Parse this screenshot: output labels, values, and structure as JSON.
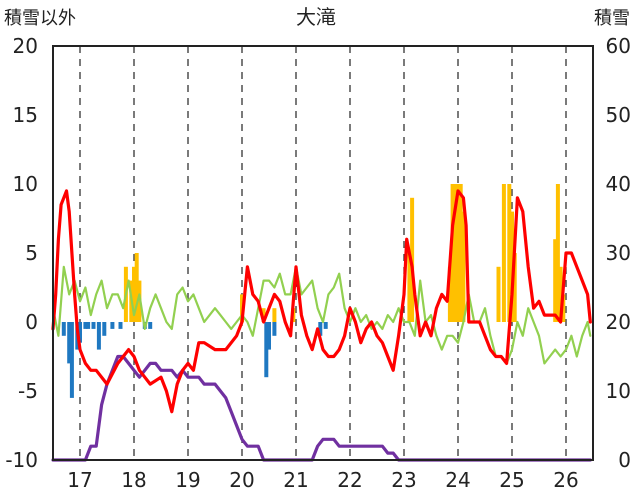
{
  "chart_data": {
    "type": "line",
    "title": "大滝",
    "left_axis_label": "積雪以外",
    "right_axis_label": "積雪",
    "left_ylim": [
      -10,
      20
    ],
    "left_yticks": [
      -10,
      -5,
      0,
      5,
      10,
      15,
      20
    ],
    "right_ylim": [
      0,
      60
    ],
    "right_yticks": [
      0,
      10,
      20,
      30,
      40,
      50,
      60
    ],
    "xlim": [
      16.5,
      26.5
    ],
    "xticks": [
      17,
      18,
      19,
      20,
      21,
      22,
      23,
      24,
      25,
      26
    ],
    "grid": "vertical-dashed",
    "colors": {
      "precip_bar": "#FFC000",
      "snow_change_bar": "#1F78C1",
      "temperature_line": "#FF0000",
      "humidity_line": "#92D050",
      "snow_depth_line": "#7030A0",
      "frame": "#222222",
      "grid": "#333333"
    },
    "bars": {
      "precip": [
        [
          17.85,
          4
        ],
        [
          17.95,
          3
        ],
        [
          18.0,
          4
        ],
        [
          18.05,
          5
        ],
        [
          18.1,
          3
        ],
        [
          20.0,
          2
        ],
        [
          20.4,
          1
        ],
        [
          20.6,
          1
        ],
        [
          20.95,
          1
        ],
        [
          23.1,
          5
        ],
        [
          23.15,
          9
        ],
        [
          23.85,
          4
        ],
        [
          23.9,
          10
        ],
        [
          23.95,
          10
        ],
        [
          24.0,
          10
        ],
        [
          24.05,
          10
        ],
        [
          24.1,
          8
        ],
        [
          24.75,
          4
        ],
        [
          24.85,
          10
        ],
        [
          24.95,
          10
        ],
        [
          25.0,
          8
        ],
        [
          25.05,
          5
        ],
        [
          25.8,
          6
        ],
        [
          25.85,
          10
        ],
        [
          25.9,
          4
        ],
        [
          25.95,
          2
        ]
      ],
      "snow_change": [
        [
          16.7,
          -1
        ],
        [
          16.8,
          -3
        ],
        [
          16.85,
          -5.5
        ],
        [
          16.95,
          -2
        ],
        [
          17.0,
          -1.5
        ],
        [
          17.1,
          -0.5
        ],
        [
          17.15,
          -0.5
        ],
        [
          17.25,
          -0.5
        ],
        [
          17.35,
          -2
        ],
        [
          17.45,
          -1
        ],
        [
          17.6,
          -0.5
        ],
        [
          17.75,
          -0.5
        ],
        [
          18.2,
          -0.5
        ],
        [
          18.3,
          -0.5
        ],
        [
          20.45,
          -4
        ],
        [
          20.5,
          -2
        ],
        [
          20.6,
          -1
        ],
        [
          21.45,
          -1
        ],
        [
          21.55,
          -0.5
        ]
      ]
    },
    "series": [
      {
        "key": "temperature",
        "x": [
          16.5,
          16.55,
          16.6,
          16.65,
          16.7,
          16.75,
          16.8,
          16.85,
          16.9,
          16.95,
          17.0,
          17.1,
          17.2,
          17.3,
          17.5,
          17.7,
          17.9,
          18.0,
          18.1,
          18.2,
          18.3,
          18.5,
          18.6,
          18.7,
          18.8,
          18.9,
          19.0,
          19.1,
          19.2,
          19.3,
          19.5,
          19.7,
          19.9,
          20.0,
          20.05,
          20.1,
          20.2,
          20.3,
          20.4,
          20.5,
          20.6,
          20.7,
          20.8,
          20.9,
          21.0,
          21.1,
          21.2,
          21.3,
          21.4,
          21.5,
          21.6,
          21.7,
          21.8,
          21.9,
          22.0,
          22.1,
          22.2,
          22.3,
          22.4,
          22.5,
          22.6,
          22.7,
          22.8,
          22.9,
          23.0,
          23.05,
          23.1,
          23.15,
          23.2,
          23.3,
          23.4,
          23.5,
          23.6,
          23.7,
          23.8,
          23.9,
          24.0,
          24.1,
          24.15,
          24.2,
          24.3,
          24.4,
          24.5,
          24.6,
          24.7,
          24.8,
          24.9,
          25.0,
          25.1,
          25.2,
          25.3,
          25.4,
          25.5,
          25.6,
          25.7,
          25.8,
          25.9,
          26.0,
          26.1,
          26.2,
          26.3,
          26.4,
          26.45
        ],
        "y": [
          -0.5,
          2,
          6,
          8.5,
          9,
          9.5,
          8,
          5,
          2,
          -0.5,
          -2,
          -3,
          -3.5,
          -3.5,
          -4.5,
          -3,
          -2,
          -2.5,
          -3.5,
          -4,
          -4.5,
          -4,
          -5,
          -6.5,
          -4.5,
          -3.5,
          -3,
          -3.5,
          -1.5,
          -1.5,
          -2,
          -2,
          -1,
          0,
          2,
          4,
          2,
          1.5,
          0,
          1,
          2,
          1.5,
          0,
          -1,
          4,
          0.5,
          -1,
          -2,
          -0.5,
          -2,
          -2.5,
          -2.5,
          -2,
          -1,
          1,
          0,
          -1.5,
          -0.5,
          0,
          -1,
          -1.5,
          -2.5,
          -3.5,
          -1,
          2,
          6,
          5,
          4,
          2,
          -1,
          0,
          -1,
          1,
          2,
          1.5,
          7,
          9.5,
          9,
          7,
          0,
          0,
          0,
          -1,
          -2,
          -2.5,
          -2.5,
          -3,
          2,
          9,
          8,
          4,
          1,
          1.5,
          0.5,
          0.5,
          0.5,
          0,
          5,
          5,
          4,
          3,
          2,
          0
        ]
      },
      {
        "key": "humidity",
        "x": [
          16.5,
          16.6,
          16.7,
          16.8,
          16.9,
          17.0,
          17.1,
          17.2,
          17.3,
          17.4,
          17.5,
          17.6,
          17.7,
          17.8,
          17.9,
          18.0,
          18.1,
          18.2,
          18.3,
          18.4,
          18.5,
          18.6,
          18.7,
          18.8,
          18.9,
          19.0,
          19.1,
          19.2,
          19.3,
          19.4,
          19.5,
          19.6,
          19.7,
          19.8,
          19.9,
          20.0,
          20.1,
          20.2,
          20.3,
          20.4,
          20.5,
          20.6,
          20.7,
          20.8,
          20.9,
          21.0,
          21.1,
          21.2,
          21.3,
          21.4,
          21.5,
          21.6,
          21.7,
          21.8,
          21.9,
          22.0,
          22.1,
          22.2,
          22.3,
          22.4,
          22.5,
          22.6,
          22.7,
          22.8,
          22.9,
          23.0,
          23.1,
          23.2,
          23.3,
          23.4,
          23.5,
          23.6,
          23.7,
          23.8,
          23.9,
          24.0,
          24.1,
          24.2,
          24.3,
          24.4,
          24.5,
          24.6,
          24.7,
          24.8,
          24.9,
          25.0,
          25.1,
          25.2,
          25.3,
          25.4,
          25.5,
          25.6,
          25.7,
          25.8,
          25.9,
          26.0,
          26.1,
          26.2,
          26.3,
          26.4,
          26.45
        ],
        "y": [
          1,
          -1,
          4,
          2,
          3,
          1.5,
          2.5,
          0.5,
          2,
          3,
          1,
          2,
          2,
          1,
          3,
          0.5,
          2,
          -0.5,
          1,
          2,
          1,
          0,
          -0.5,
          2,
          2.5,
          1.5,
          2,
          1,
          0,
          0.5,
          1,
          0.5,
          0,
          -0.5,
          0,
          0.5,
          0,
          -1,
          1,
          3,
          3,
          2.5,
          3.5,
          2,
          2,
          4,
          2,
          2.5,
          3,
          1,
          0,
          2,
          2.5,
          3.5,
          1,
          0,
          1,
          0,
          0.5,
          -0.5,
          0,
          -0.5,
          0.5,
          0,
          1,
          0,
          0,
          -1,
          3,
          0,
          0.5,
          -1,
          -2,
          -1,
          -1,
          -1.5,
          0,
          2,
          0,
          0,
          1,
          -1,
          -2.5,
          -2.5,
          -3,
          -2,
          0,
          -1,
          1,
          0,
          -1,
          -3,
          -2.5,
          -2,
          -2.5,
          -2,
          -1,
          -2.5,
          -1,
          0,
          -1
        ]
      },
      {
        "key": "snow_depth",
        "x": [
          16.5,
          16.6,
          16.7,
          16.8,
          16.9,
          17.0,
          17.1,
          17.2,
          17.3,
          17.4,
          17.5,
          17.6,
          17.7,
          17.8,
          17.9,
          18.0,
          18.1,
          18.2,
          18.3,
          18.4,
          18.5,
          18.6,
          18.7,
          18.8,
          18.9,
          19.0,
          19.1,
          19.2,
          19.3,
          19.4,
          19.5,
          19.6,
          19.7,
          19.8,
          19.9,
          20.0,
          20.1,
          20.2,
          20.3,
          20.4,
          20.5,
          20.6,
          20.7,
          20.8,
          20.9,
          21.0,
          21.1,
          21.2,
          21.3,
          21.4,
          21.5,
          21.6,
          21.7,
          21.8,
          21.9,
          22.0,
          22.1,
          22.2,
          22.3,
          22.4,
          22.5,
          22.6,
          22.7,
          22.8,
          22.9,
          23.0,
          23.5,
          24.0,
          24.5,
          25.0,
          25.5,
          26.0,
          26.45
        ],
        "y": [
          0,
          0,
          0,
          0,
          0,
          0,
          0,
          2,
          2,
          8,
          11,
          13,
          15,
          15,
          14,
          13,
          12,
          13,
          14,
          14,
          13,
          13,
          13,
          12,
          13,
          12,
          12,
          12,
          11,
          11,
          11,
          10,
          9,
          7,
          5,
          3,
          2,
          2,
          2,
          0,
          0,
          0,
          0,
          0,
          0,
          0,
          0,
          0,
          0,
          2,
          3,
          3,
          3,
          2,
          2,
          2,
          2,
          2,
          2,
          2,
          2,
          2,
          1,
          1,
          0,
          0,
          0,
          0,
          0,
          0,
          0,
          0,
          0
        ]
      }
    ]
  }
}
